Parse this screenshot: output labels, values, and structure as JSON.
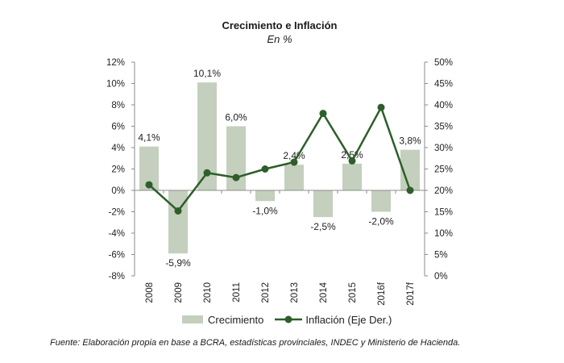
{
  "chart_data": {
    "type": "bar",
    "title": "Crecimiento e Inflación",
    "subtitle": "En %",
    "categories": [
      "2008",
      "2009",
      "2010",
      "2011",
      "2012",
      "2013",
      "2014",
      "2015",
      "2016f",
      "2017f"
    ],
    "series": [
      {
        "name": "Crecimiento",
        "type": "bar",
        "axis": "left",
        "values": [
          4.1,
          -5.9,
          10.1,
          6.0,
          -1.0,
          2.4,
          -2.5,
          2.5,
          -2.0,
          3.8
        ],
        "labels": [
          "4,1%",
          "-5,9%",
          "10,1%",
          "6,0%",
          "-1,0%",
          "2,4%",
          "-2,5%",
          "2,5%",
          "-2,0%",
          "3,8%"
        ]
      },
      {
        "name": "Inflación (Eje Der.)",
        "type": "line",
        "axis": "right",
        "values": [
          21.3,
          15.2,
          24.1,
          23.0,
          25.0,
          26.6,
          38.0,
          26.9,
          39.4,
          20.0
        ]
      }
    ],
    "y_left": {
      "ylim": [
        -8,
        12
      ],
      "ticks": [
        12,
        10,
        8,
        6,
        4,
        2,
        0,
        -2,
        -4,
        -6,
        -8
      ],
      "tick_labels": [
        "12%",
        "10%",
        "8%",
        "6%",
        "4%",
        "2%",
        "0%",
        "-2%",
        "-4%",
        "-6%",
        "-8%"
      ]
    },
    "y_right": {
      "ylim": [
        0,
        50
      ],
      "ticks": [
        50,
        45,
        40,
        35,
        30,
        25,
        20,
        15,
        10,
        5,
        0
      ],
      "tick_labels": [
        "50%",
        "45%",
        "40%",
        "35%",
        "30%",
        "25%",
        "20%",
        "15%",
        "10%",
        "5%",
        "0%"
      ]
    },
    "grid": false,
    "legend_position": "bottom",
    "colors": {
      "bar": "#c4cfbe",
      "line": "#2e5e2a",
      "axis": "#8c8c8c",
      "text": "#222222"
    }
  },
  "source": "Fuente: Elaboración propia en base a BCRA, estadísticas provinciales, INDEC y Ministerio de Hacienda."
}
